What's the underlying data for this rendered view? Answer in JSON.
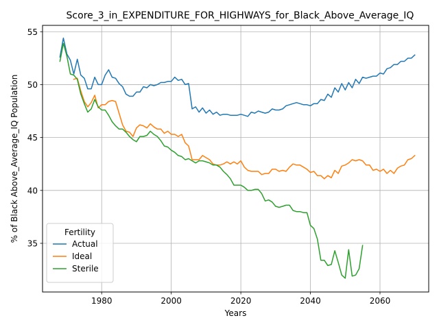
{
  "chart_data": {
    "type": "line",
    "title": "Score_3_in_EXPENDITURE_FOR_HIGHWAYS_for_Black_Above_Average_IQ",
    "xlabel": "Years",
    "ylabel": "% of Black Above_Average_IQ Population",
    "xlim": [
      1963,
      2074
    ],
    "ylim": [
      30.4,
      55.6
    ],
    "xticks": [
      1980,
      2000,
      2020,
      2040,
      2060
    ],
    "yticks": [
      35,
      40,
      45,
      50,
      55
    ],
    "grid": true,
    "legend": {
      "title": "Fertility",
      "position": "lower-left"
    },
    "series": [
      {
        "name": "Actual",
        "color": "#1f77b4",
        "x": [
          1968,
          1969,
          1970,
          1971,
          1972,
          1973,
          1974,
          1975,
          1976,
          1977,
          1978,
          1979,
          1980,
          1981,
          1982,
          1983,
          1984,
          1985,
          1986,
          1987,
          1988,
          1989,
          1990,
          1991,
          1992,
          1993,
          1994,
          1995,
          1996,
          1997,
          1998,
          1999,
          2000,
          2001,
          2002,
          2003,
          2004,
          2005,
          2006,
          2007,
          2008,
          2009,
          2010,
          2011,
          2012,
          2013,
          2014,
          2015,
          2016,
          2017,
          2018,
          2019,
          2020,
          2021,
          2022,
          2023,
          2024,
          2025,
          2026,
          2027,
          2028,
          2029,
          2030,
          2031,
          2032,
          2033,
          2034,
          2035,
          2036,
          2037,
          2038,
          2039,
          2040,
          2041,
          2042,
          2043,
          2044,
          2045,
          2046,
          2047,
          2048,
          2049,
          2050,
          2051,
          2052,
          2053,
          2054,
          2055,
          2056,
          2057,
          2058,
          2059,
          2060,
          2061,
          2062,
          2063,
          2064,
          2065,
          2066,
          2067,
          2068,
          2069,
          2070
        ],
        "y": [
          52.6,
          54.4,
          52.9,
          52.3,
          51.0,
          52.4,
          50.9,
          50.6,
          49.6,
          49.6,
          50.7,
          50.0,
          50.0,
          50.9,
          51.4,
          50.7,
          50.6,
          50.1,
          49.8,
          49.1,
          48.9,
          48.9,
          49.3,
          49.3,
          49.8,
          49.7,
          50.0,
          49.9,
          50.0,
          50.2,
          50.2,
          50.3,
          50.3,
          50.7,
          50.4,
          50.5,
          50.0,
          50.1,
          47.7,
          47.9,
          47.4,
          47.8,
          47.3,
          47.6,
          47.2,
          47.4,
          47.1,
          47.2,
          47.2,
          47.1,
          47.1,
          47.1,
          47.2,
          47.1,
          47.0,
          47.4,
          47.3,
          47.5,
          47.4,
          47.3,
          47.4,
          47.7,
          47.6,
          47.6,
          47.7,
          48.0,
          48.1,
          48.2,
          48.3,
          48.2,
          48.1,
          48.1,
          48.0,
          48.2,
          48.2,
          48.6,
          48.5,
          49.1,
          48.8,
          49.7,
          49.3,
          50.1,
          49.5,
          50.2,
          49.7,
          50.5,
          50.1,
          50.7,
          50.6,
          50.7,
          50.8,
          50.8,
          51.1,
          51.0,
          51.5,
          51.6,
          51.9,
          51.9,
          52.2,
          52.2,
          52.5,
          52.5,
          52.8
        ]
      },
      {
        "name": "Ideal",
        "color": "#ff7f0e",
        "x": [
          1972,
          1973,
          1974,
          1975,
          1976,
          1977,
          1978,
          1979,
          1980,
          1981,
          1982,
          1983,
          1984,
          1985,
          1986,
          1987,
          1988,
          1989,
          1990,
          1991,
          1992,
          1993,
          1994,
          1995,
          1996,
          1997,
          1998,
          1999,
          2000,
          2001,
          2002,
          2003,
          2004,
          2005,
          2006,
          2007,
          2008,
          2009,
          2010,
          2011,
          2012,
          2013,
          2014,
          2015,
          2016,
          2017,
          2018,
          2019,
          2020,
          2021,
          2022,
          2023,
          2024,
          2025,
          2026,
          2027,
          2028,
          2029,
          2030,
          2031,
          2032,
          2033,
          2034,
          2035,
          2036,
          2037,
          2038,
          2039,
          2040,
          2041,
          2042,
          2043,
          2044,
          2045,
          2046,
          2047,
          2048,
          2049,
          2050,
          2051,
          2052,
          2053,
          2054,
          2055,
          2056,
          2057,
          2058,
          2059,
          2060,
          2061,
          2062,
          2063,
          2064,
          2065,
          2066,
          2067,
          2068,
          2069,
          2070
        ],
        "y": [
          50.5,
          50.6,
          49.4,
          48.4,
          47.9,
          48.3,
          49.0,
          47.8,
          48.1,
          48.1,
          48.4,
          48.5,
          48.4,
          47.3,
          46.2,
          45.6,
          45.5,
          45.1,
          45.9,
          46.2,
          46.1,
          45.9,
          46.3,
          46.0,
          45.8,
          45.8,
          45.4,
          45.6,
          45.3,
          45.3,
          45.1,
          45.3,
          44.5,
          44.2,
          42.9,
          42.9,
          42.9,
          43.3,
          43.1,
          42.9,
          42.5,
          42.4,
          42.4,
          42.5,
          42.7,
          42.5,
          42.7,
          42.5,
          42.8,
          42.2,
          41.9,
          41.8,
          41.8,
          41.8,
          41.5,
          41.6,
          41.6,
          42.0,
          42.0,
          41.8,
          41.9,
          41.8,
          42.2,
          42.5,
          42.4,
          42.4,
          42.2,
          42.0,
          41.7,
          41.8,
          41.4,
          41.4,
          41.1,
          41.4,
          41.2,
          41.9,
          41.6,
          42.3,
          42.4,
          42.6,
          42.9,
          42.8,
          42.9,
          42.8,
          42.4,
          42.4,
          41.9,
          42.0,
          41.8,
          42.0,
          41.6,
          41.9,
          41.6,
          42.1,
          42.3,
          42.4,
          42.9,
          43.0,
          43.3
        ]
      },
      {
        "name": "Sterile",
        "color": "#2ca02c",
        "x": [
          1968,
          1969,
          1970,
          1971,
          1972,
          1973,
          1974,
          1975,
          1976,
          1977,
          1978,
          1979,
          1980,
          1981,
          1982,
          1983,
          1984,
          1985,
          1986,
          1987,
          1988,
          1989,
          1990,
          1991,
          1992,
          1993,
          1994,
          1995,
          1996,
          1997,
          1998,
          1999,
          2000,
          2001,
          2002,
          2003,
          2004,
          2005,
          2006,
          2007,
          2008,
          2009,
          2010,
          2011,
          2012,
          2013,
          2014,
          2015,
          2016,
          2017,
          2018,
          2019,
          2020,
          2021,
          2022,
          2023,
          2024,
          2025,
          2026,
          2027,
          2028,
          2029,
          2030,
          2031,
          2032,
          2033,
          2034,
          2035,
          2036,
          2037,
          2038,
          2039,
          2040,
          2041,
          2042,
          2043,
          2044,
          2045,
          2046,
          2047,
          2048,
          2049,
          2050,
          2051,
          2052,
          2053,
          2054,
          2055
        ],
        "y": [
          52.2,
          53.9,
          52.7,
          51.0,
          50.9,
          50.5,
          49.1,
          48.2,
          47.4,
          47.7,
          48.6,
          47.9,
          47.6,
          47.6,
          47.1,
          46.5,
          46.1,
          45.8,
          45.8,
          45.5,
          45.1,
          44.8,
          44.6,
          45.1,
          45.1,
          45.2,
          45.6,
          45.3,
          45.1,
          44.7,
          44.2,
          44.1,
          43.8,
          43.6,
          43.3,
          43.2,
          42.9,
          43.0,
          42.8,
          42.6,
          42.8,
          42.8,
          42.7,
          42.6,
          42.4,
          42.4,
          42.2,
          41.8,
          41.5,
          41.1,
          40.5,
          40.5,
          40.5,
          40.3,
          40.0,
          40.0,
          40.1,
          40.1,
          39.7,
          39.0,
          39.1,
          38.9,
          38.5,
          38.4,
          38.5,
          38.6,
          38.6,
          38.1,
          38.0,
          38.0,
          37.9,
          37.9,
          36.7,
          36.4,
          35.4,
          33.4,
          33.4,
          32.9,
          33.0,
          34.3,
          33.2,
          32.0,
          31.7,
          34.4,
          31.9,
          32.0,
          32.6,
          34.8
        ]
      }
    ]
  }
}
